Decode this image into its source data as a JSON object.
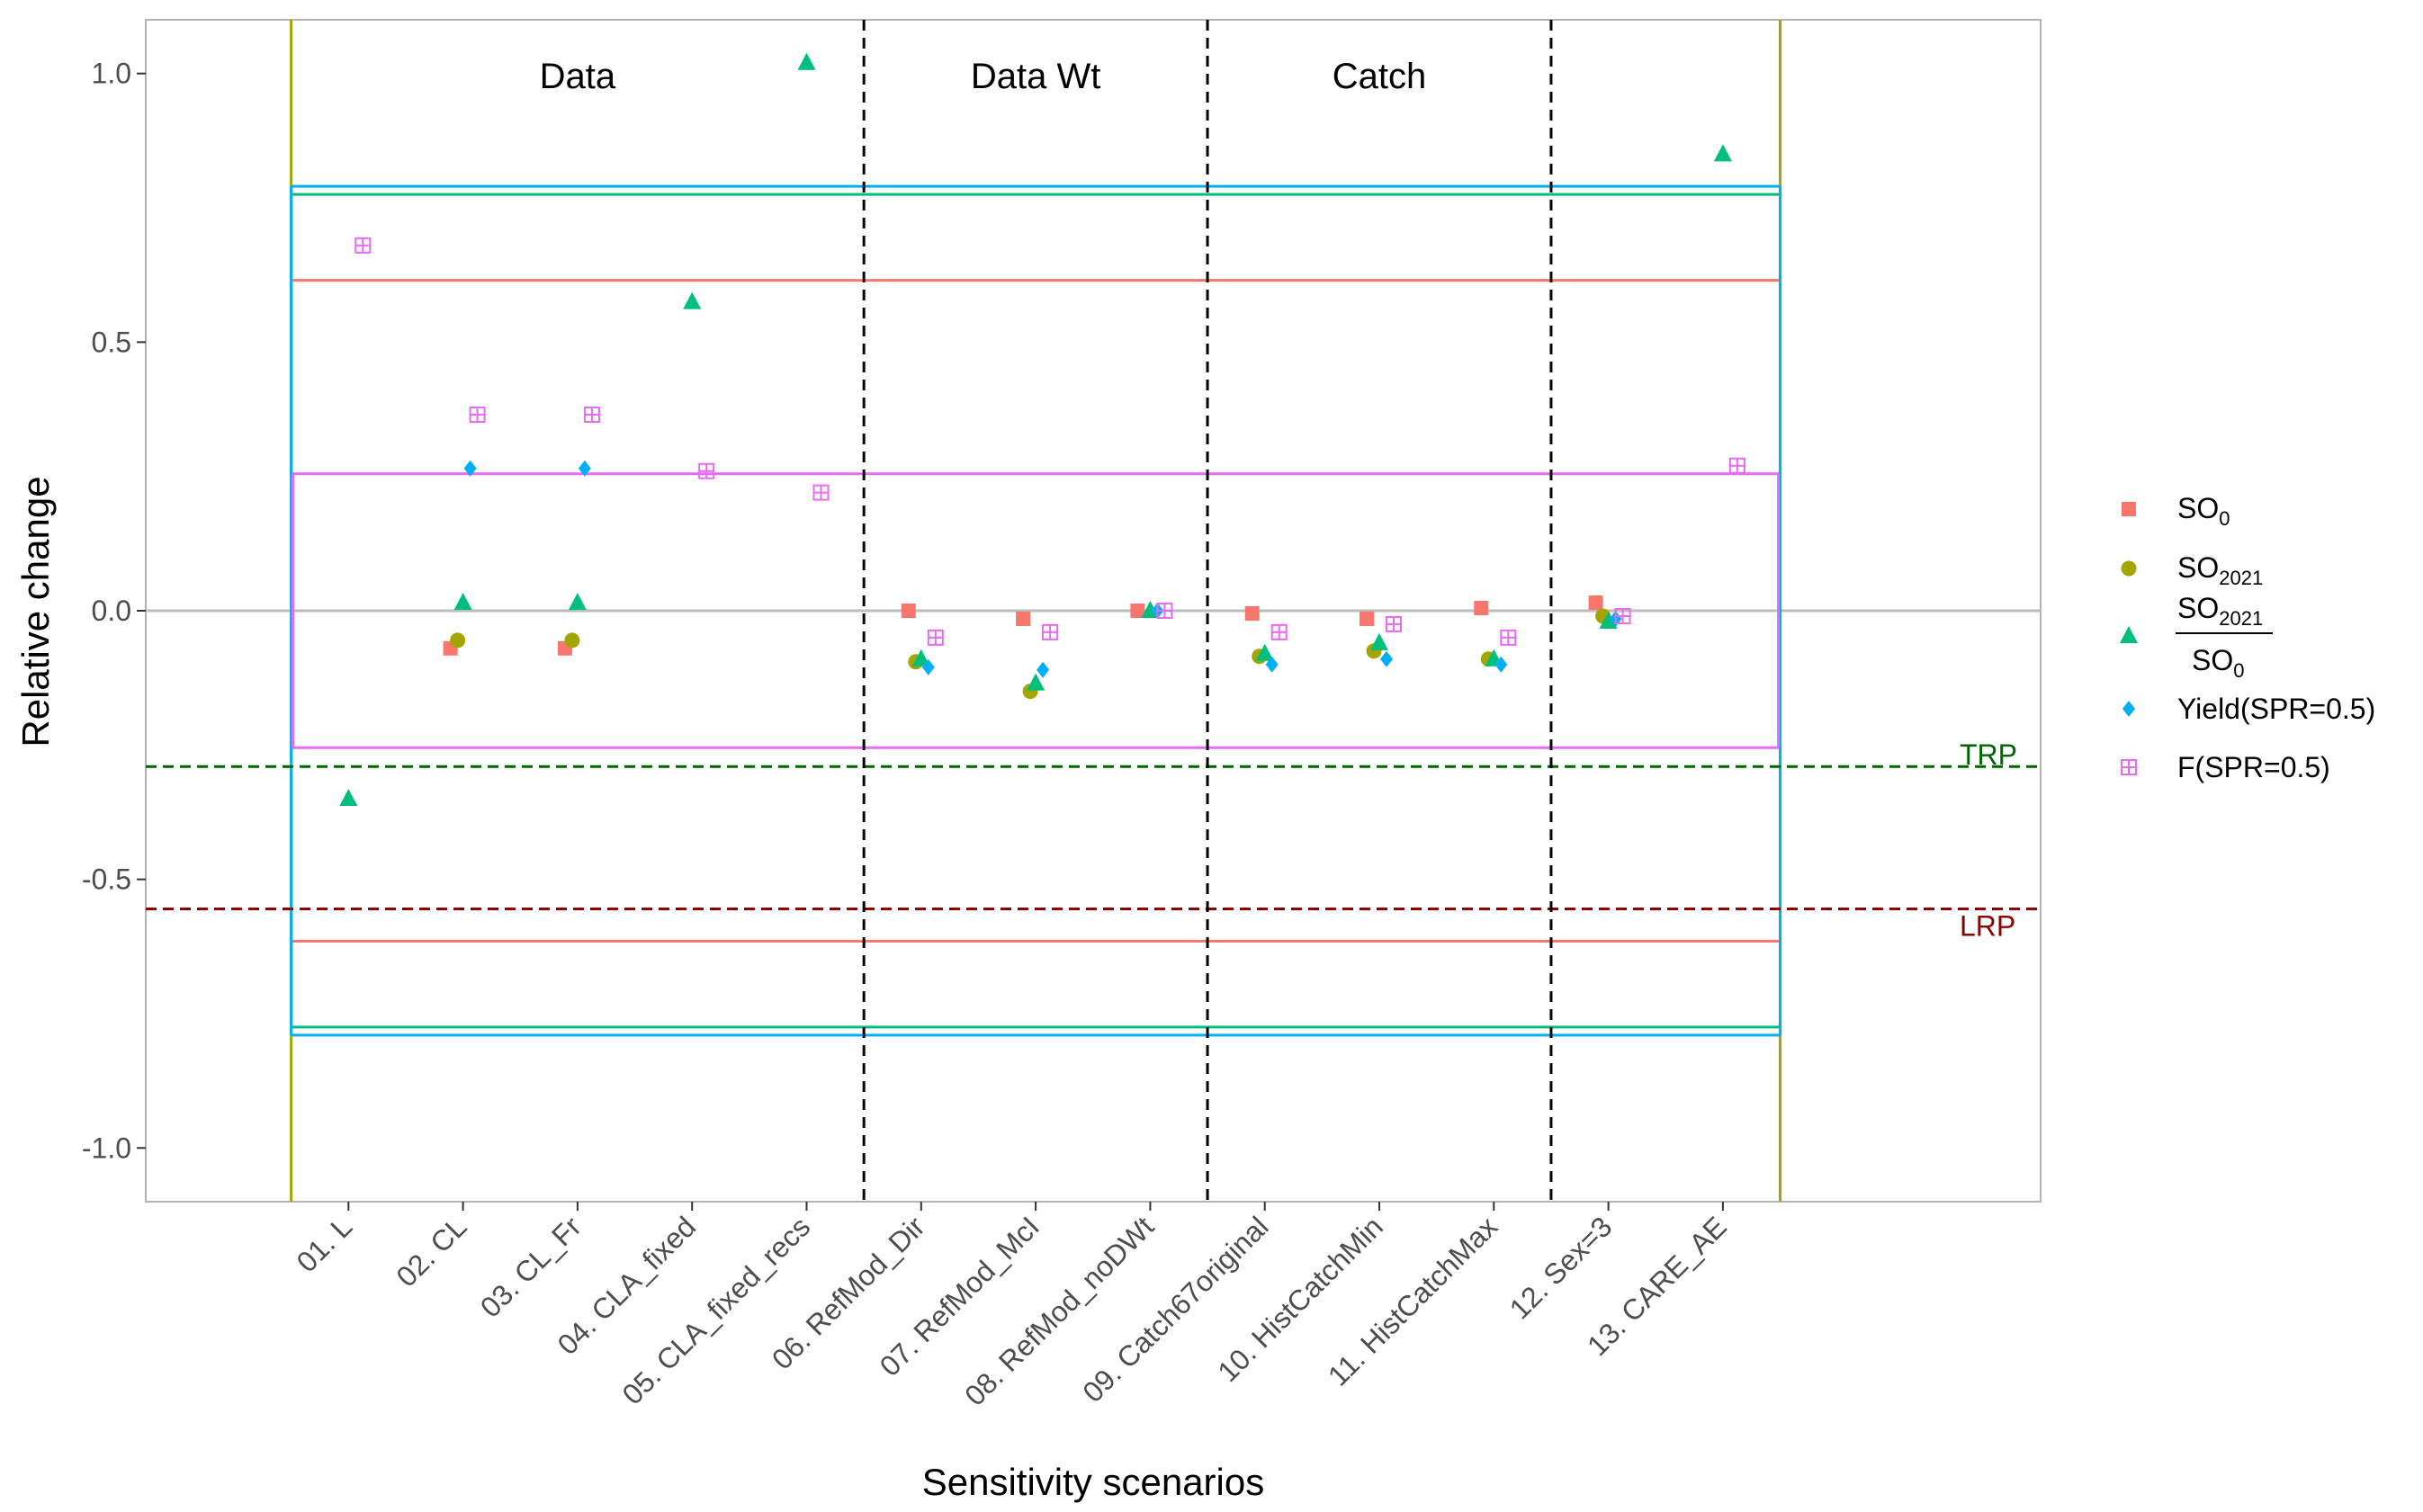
{
  "chart_data": {
    "type": "scatter",
    "title": "",
    "xlabel": "Sensitivity scenarios",
    "ylabel": "Relative change",
    "ylim": [
      -1.1,
      1.1
    ],
    "yticks": [
      1.0,
      0.5,
      0.0,
      -0.5,
      -1.0
    ],
    "ytick_labels": [
      "1.0",
      "0.5",
      "0.0",
      "-0.5",
      "-1.0"
    ],
    "grid": false,
    "legend_position": "right",
    "categories": [
      "01. L",
      "02. CL",
      "03. CL_Fr",
      "04. CLA_fixed",
      "05. CLA_fixed_recs",
      "06. RefMod_Dir",
      "07. RefMod_McI",
      "08. RefMod_noDWt",
      "09. Catch67original",
      "10. HistCatchMin",
      "11. HistCatchMax",
      "12. Sex=3",
      "13. CARE_AE"
    ],
    "groups": [
      {
        "label": "Data",
        "from": 1,
        "to": 5
      },
      {
        "label": "Data Wt",
        "from": 6,
        "to": 8
      },
      {
        "label": "Catch",
        "from": 9,
        "to": 11
      }
    ],
    "group_dividers_after": [
      5,
      8,
      11
    ],
    "series": [
      {
        "name": "SO0",
        "legend_main": "SO",
        "legend_sub": "0",
        "color": "#F8766D",
        "marker": "square",
        "values": [
          null,
          -0.07,
          -0.07,
          null,
          null,
          0.0,
          -0.015,
          0.0,
          -0.005,
          -0.015,
          0.005,
          0.015,
          null
        ]
      },
      {
        "name": "SO2021",
        "legend_main": "SO",
        "legend_sub": "2021",
        "color": "#A3A500",
        "marker": "circle",
        "values": [
          null,
          -0.055,
          -0.055,
          null,
          null,
          -0.095,
          -0.15,
          null,
          -0.085,
          -0.075,
          -0.09,
          -0.01,
          null
        ]
      },
      {
        "name": "SO2021 / SO0",
        "legend_num_main": "SO",
        "legend_num_sub": "2021",
        "legend_den_main": "SO",
        "legend_den_sub": "0",
        "color": "#00BF7D",
        "marker": "triangle",
        "values": [
          -0.35,
          0.015,
          0.015,
          0.575,
          1.02,
          -0.09,
          -0.135,
          0.0,
          -0.08,
          -0.06,
          -0.09,
          -0.02,
          0.85
        ]
      },
      {
        "name": "Yield(SPR=0.5)",
        "color": "#00B0F6",
        "marker": "diamond",
        "values": [
          null,
          0.265,
          0.265,
          null,
          null,
          -0.105,
          -0.11,
          0.0,
          -0.1,
          -0.09,
          -0.1,
          -0.015,
          null
        ]
      },
      {
        "name": "F(SPR=0.5)",
        "color": "#E76BF3",
        "marker": "boxplus",
        "values": [
          0.68,
          0.365,
          0.365,
          0.26,
          0.22,
          -0.05,
          -0.04,
          0.0,
          -0.04,
          -0.025,
          -0.05,
          -0.01,
          0.27
        ]
      }
    ],
    "bands": [
      {
        "series": "SO0",
        "color": "#F8766D",
        "lower": -0.615,
        "upper": 0.615
      },
      {
        "series": "SO2021",
        "color": "#A3A500",
        "vertical_edges": true
      },
      {
        "series": "SO2021 / SO0",
        "color": "#00BF7D",
        "lower": -0.775,
        "upper": 0.775
      },
      {
        "series": "Yield(SPR=0.5)",
        "color": "#00B0F6",
        "lower": -0.79,
        "upper": 0.79
      },
      {
        "series": "F(SPR=0.5)",
        "color": "#E76BF3",
        "lower": -0.255,
        "upper": 0.255
      }
    ],
    "reference_lines": [
      {
        "label": "TRP",
        "value": -0.29,
        "color": "#006400"
      },
      {
        "label": "LRP",
        "value": -0.555,
        "color": "#8B0000"
      }
    ]
  }
}
